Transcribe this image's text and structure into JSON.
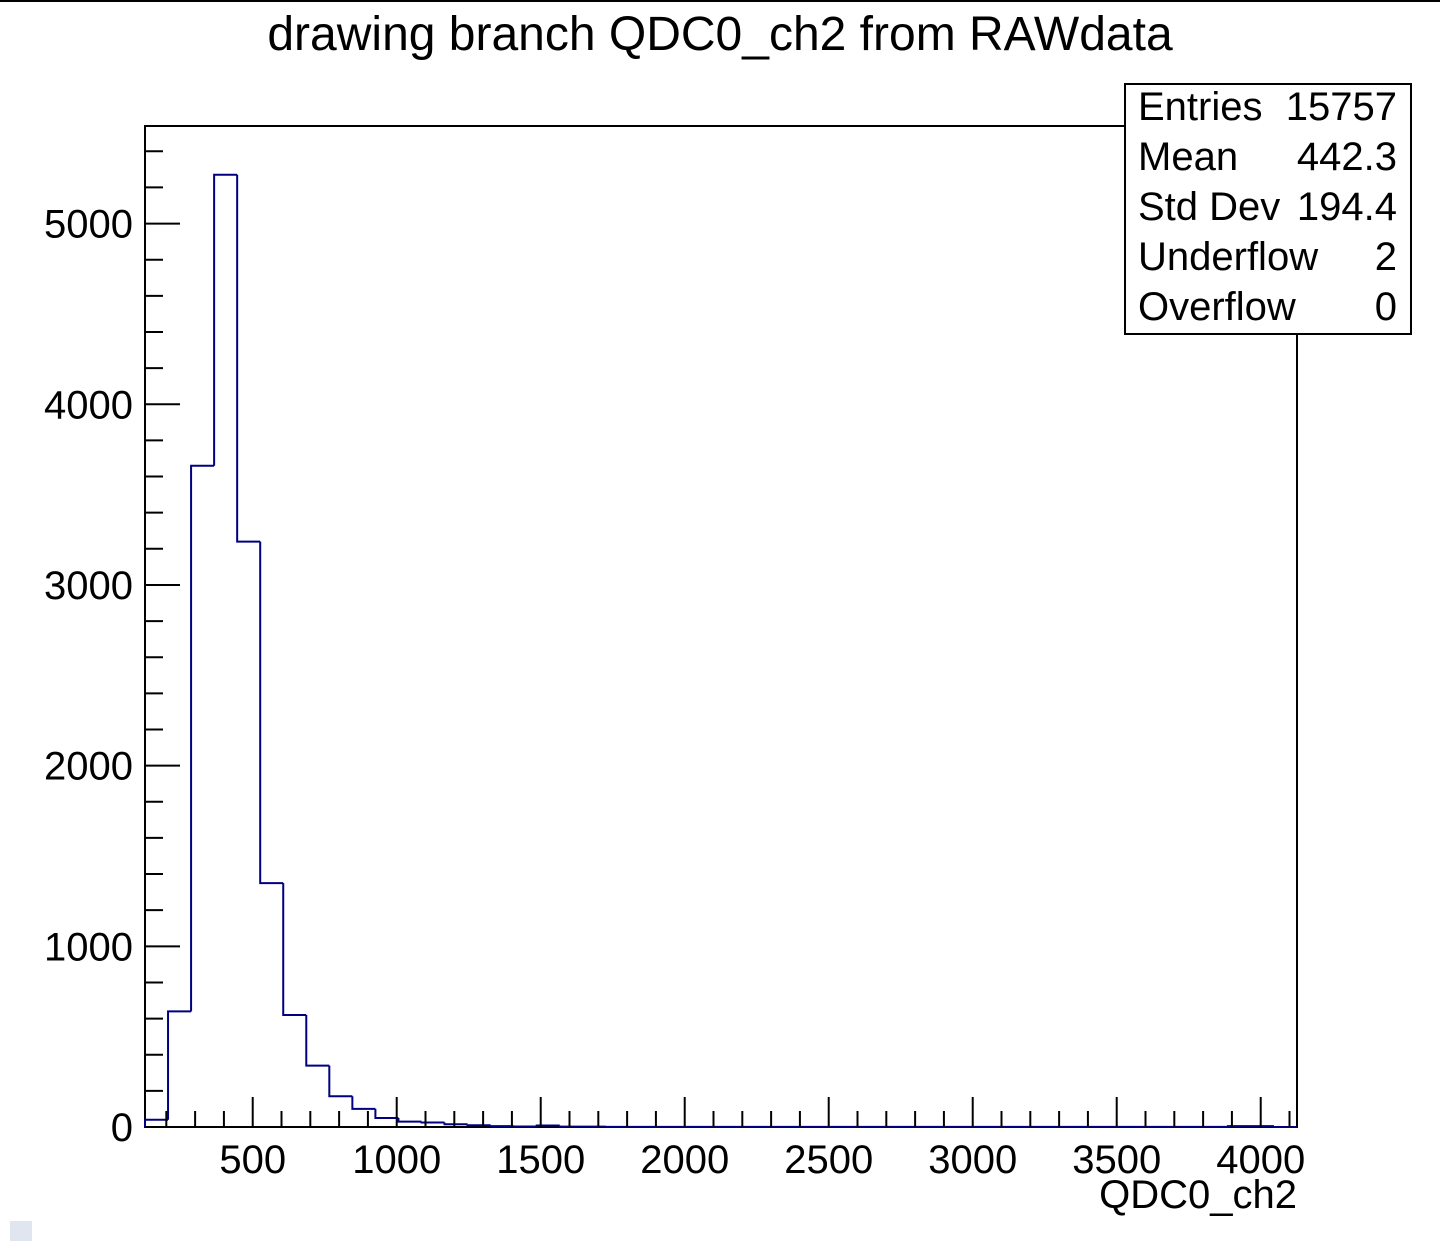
{
  "chart_data": {
    "type": "bar",
    "title": "drawing branch QDC0_ch2 from RAWdata",
    "xlabel": "QDC0_ch2",
    "ylabel": "",
    "xlim": [
      126,
      4126
    ],
    "ylim": [
      0,
      5540
    ],
    "x_ticks": [
      500,
      1000,
      1500,
      2000,
      2500,
      3000,
      3500,
      4000
    ],
    "y_ticks": [
      0,
      1000,
      2000,
      3000,
      4000,
      5000
    ],
    "bin_width": 80,
    "bin_low_edges": [
      126,
      206,
      286,
      366,
      446,
      526,
      606,
      686,
      766,
      846,
      926,
      1006,
      1086,
      1166,
      1246,
      1326,
      1406,
      1486,
      1566,
      1646,
      1726,
      1806,
      1886,
      1966,
      2046,
      2126,
      2206,
      2286,
      2366,
      2446,
      2526,
      2606,
      2686,
      2766,
      2846,
      2926,
      3006,
      3086,
      3166,
      3246,
      3326,
      3406,
      3486,
      3566,
      3646,
      3726,
      3806,
      3886,
      3966,
      4046
    ],
    "values": [
      40,
      640,
      3660,
      5270,
      3240,
      1350,
      620,
      340,
      170,
      100,
      50,
      30,
      25,
      15,
      10,
      5,
      3,
      8,
      2,
      2,
      1,
      1,
      1,
      1,
      1,
      1,
      1,
      1,
      1,
      1,
      1,
      1,
      1,
      1,
      1,
      1,
      1,
      1,
      1,
      1,
      1,
      1,
      1,
      1,
      1,
      1,
      1,
      5,
      5,
      0
    ],
    "line_color": "#000080",
    "stats": {
      "rows": [
        {
          "label": "Entries",
          "value": "15757"
        },
        {
          "label": "Mean",
          "value": "442.3"
        },
        {
          "label": "Std Dev",
          "value": "194.4"
        },
        {
          "label": "Underflow",
          "value": "2"
        },
        {
          "label": "Overflow",
          "value": "0"
        }
      ]
    }
  }
}
